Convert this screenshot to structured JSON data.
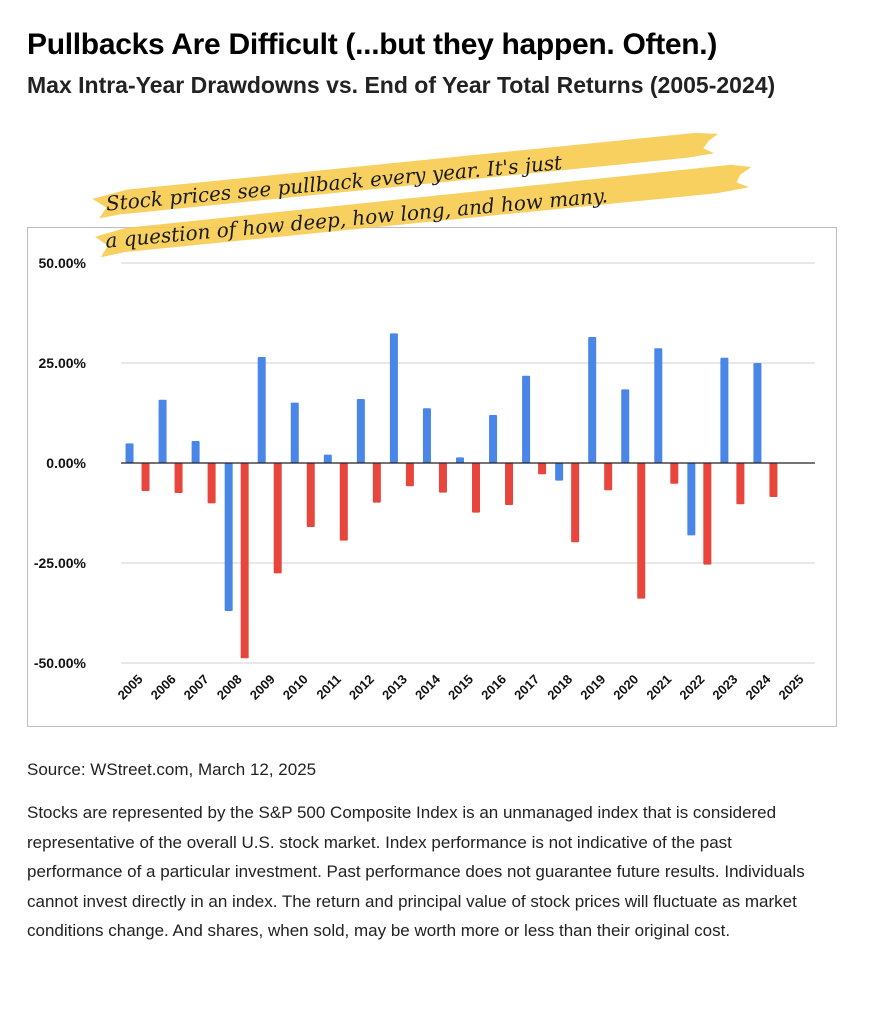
{
  "header": {
    "title": "Pullbacks Are Difficult (...but they happen. Often.)",
    "subtitle": "Max Intra-Year Drawdowns vs. End of Year Total Returns (2005-2024)"
  },
  "callout": {
    "line1": "Stock prices see pullback every year. It's just",
    "line2": "a question of how deep, how long, and how many.",
    "highlight_color": "#f6c94a"
  },
  "chart_data": {
    "type": "bar",
    "categories": [
      "2005",
      "2006",
      "2007",
      "2008",
      "2009",
      "2010",
      "2011",
      "2012",
      "2013",
      "2014",
      "2015",
      "2016",
      "2017",
      "2018",
      "2019",
      "2020",
      "2021",
      "2022",
      "2023",
      "2024",
      "2025"
    ],
    "series": [
      {
        "color": "#4a86e8",
        "values": [
          4.9,
          15.8,
          5.5,
          -37.0,
          26.5,
          15.1,
          2.1,
          16.0,
          32.4,
          13.7,
          1.4,
          12.0,
          21.8,
          -4.4,
          31.5,
          18.4,
          28.7,
          -18.1,
          26.3,
          25.0,
          null
        ]
      },
      {
        "color": "#e8453c",
        "values": [
          -7.0,
          -7.5,
          -10.1,
          -48.8,
          -27.6,
          -16.0,
          -19.4,
          -9.9,
          -5.8,
          -7.4,
          -12.4,
          -10.5,
          -2.8,
          -19.8,
          -6.8,
          -33.9,
          -5.2,
          -25.4,
          -10.3,
          -8.5,
          null
        ]
      }
    ],
    "xlabel": "",
    "ylabel": "",
    "ylim": [
      -50,
      50
    ],
    "yticks": [
      50,
      25,
      0,
      -25,
      -50
    ],
    "ytick_labels": [
      "50.00%",
      "25.00%",
      "0.00%",
      "-25.00%",
      "-50.00%"
    ],
    "grid": true
  },
  "footer": {
    "source": "Source: WStreet.com, March 12, 2025",
    "disclaimer": "Stocks are represented by the S&P 500 Composite Index is an unmanaged index that is considered representative of the overall U.S. stock market. Index performance is not indicative of the past performance of a particular investment. Past performance does not guarantee future results. Individuals cannot invest directly in an index. The return and principal value of stock prices will fluctuate as market conditions change. And shares, when sold, may be worth more or less than their original cost."
  }
}
